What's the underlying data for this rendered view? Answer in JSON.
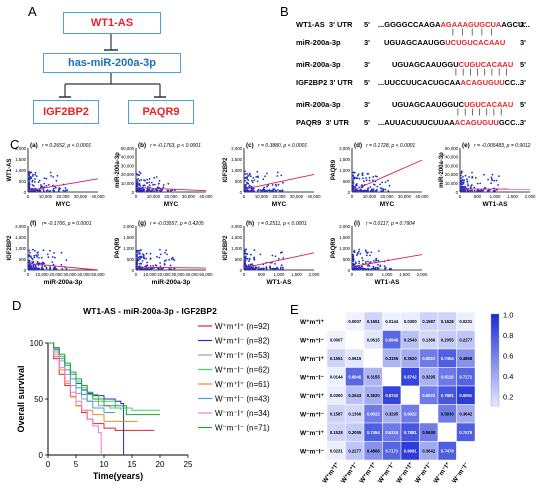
{
  "panels": {
    "A": "A",
    "B": "B",
    "C": "C",
    "D": "D",
    "E": "E"
  },
  "panelA": {
    "top": "WT1-AS",
    "mid": "has-miR-200a-3p",
    "left": "IGF2BP2",
    "right": "PAQR9",
    "colors": {
      "border": "#4aa3d8",
      "red": "#e8232b",
      "blue": "#1d6fb8"
    }
  },
  "panelB": {
    "rows": [
      {
        "label": "WT1-AS  3' UTR",
        "p5": "5'",
        "pre": "...GGGGCCAAGA",
        "hl": "AGAAAGUGCUA",
        "post": "AGCU...",
        "p3": "3'"
      },
      {
        "label": "miR-200a-3p",
        "p5": "3'",
        "pre": "UGUAGCAAUGG",
        "hl": "UCUGUCACAAU",
        "post": "",
        "p3": "5'"
      },
      {
        "label": "miR-200a-3p",
        "p5": "3'",
        "pre": "UGUAGCAAUGGU",
        "hl": "CUGUCACAAU",
        "post": "",
        "p3": "5'"
      },
      {
        "label": "IGF2BP2 3' UTR",
        "p5": "5'",
        "pre": "...UUCCUUCACUGCAA",
        "hl": "ACAGUGUU",
        "post": "CC...",
        "p3": "3'"
      },
      {
        "label": "miR-200a-3p",
        "p5": "3'",
        "pre": "UGUAGCAAUGGUC",
        "hl": "UGUCACAAU",
        "post": "",
        "p3": "5'"
      },
      {
        "label": "PAQR9  3' UTR",
        "p5": "5'",
        "pre": "...AUUACUUUCUUAA",
        "hl": "ACAGUGUU",
        "post": "GCC...",
        "p3": "3'"
      }
    ],
    "bars1": "|   |   |   |   |",
    "bars2": "|  |  |  |  |  |  |  |",
    "bars3": "|  |  |  |  |  |  |"
  },
  "scatter": [
    {
      "tag": "(a)",
      "stat": "r = 0.2652, p < 0.0001",
      "ylabel": "WT1-AS",
      "xlabel": "MYC",
      "yticks": [
        "0",
        "500",
        "1,000",
        "1,500",
        "2,000"
      ],
      "xticks": [
        "0",
        "10,000",
        "20,000",
        "30,000",
        "40,000"
      ],
      "xmax": 40000,
      "ymax": 2000,
      "line": [
        [
          0,
          60
        ],
        [
          40000,
          600
        ]
      ]
    },
    {
      "tag": "(b)",
      "stat": "r = -0.1763, p < 0.0001",
      "ylabel": "miR-200a-3p",
      "xlabel": "MYC",
      "yticks": [
        "0",
        "10,000",
        "20,000",
        "30,000",
        "40,000",
        "50,000"
      ],
      "xticks": [
        "0",
        "10,000",
        "20,000",
        "30,000",
        "40,000"
      ],
      "xmax": 40000,
      "ymax": 50000,
      "line": [
        [
          0,
          5000
        ],
        [
          40000,
          1500
        ]
      ]
    },
    {
      "tag": "(c)",
      "stat": "r = 0.3880, p < 0.0001",
      "ylabel": "IGF2BP2",
      "xlabel": "MYC",
      "yticks": [
        "0",
        "500",
        "1,000",
        "1,500",
        "2,000"
      ],
      "xticks": [
        "0",
        "10,000",
        "20,000",
        "30,000",
        "40,000"
      ],
      "xmax": 40000,
      "ymax": 2000,
      "line": [
        [
          0,
          120
        ],
        [
          40000,
          800
        ]
      ]
    },
    {
      "tag": "(d)",
      "stat": "r = 0.1728, p < 0.0001",
      "ylabel": "PAQR9",
      "xlabel": "MYC",
      "yticks": [
        "0",
        "500",
        "1,000",
        "1,500",
        "2,000"
      ],
      "xticks": [
        "0",
        "10,000",
        "20,000",
        "30,000",
        "40,000"
      ],
      "xmax": 40000,
      "ymax": 2000,
      "line": [
        [
          0,
          50
        ],
        [
          40000,
          1450
        ]
      ]
    },
    {
      "tag": "(e)",
      "stat": "r = -0.005483, p = 0.9012",
      "ylabel": "miR-200a-3p",
      "xlabel": "WT1-AS",
      "yticks": [
        "0",
        "10,000",
        "20,000",
        "30,000",
        "40,000",
        "50,000"
      ],
      "xticks": [
        "0",
        "500",
        "1,000",
        "1,500",
        "2,000"
      ],
      "xmax": 2000,
      "ymax": 50000,
      "line": [
        [
          0,
          3500
        ],
        [
          2000,
          3300
        ]
      ]
    },
    {
      "tag": "(f)",
      "stat": "r= -0.1706, p = 0.0001",
      "ylabel": "IGF2BP2",
      "xlabel": "miR-200a-3p",
      "yticks": [
        "0",
        "500",
        "1,000",
        "1,500",
        "2,000"
      ],
      "xticks": [
        "0",
        "10,000",
        "20,000",
        "30,000",
        "40,000",
        "50,000"
      ],
      "xmax": 50000,
      "ymax": 2000,
      "line": [
        [
          0,
          300
        ],
        [
          50000,
          -50
        ]
      ]
    },
    {
      "tag": "(g)",
      "stat": "r = -0.03557, p = 0.4205",
      "ylabel": "PAQR9",
      "xlabel": "miR-200a-3p",
      "yticks": [
        "0",
        "500",
        "1,000",
        "1,500",
        "2,000"
      ],
      "xticks": [
        "0",
        "10,000",
        "20,000",
        "30,000",
        "40,000",
        "50,000"
      ],
      "xmax": 50000,
      "ymax": 2000,
      "line": [
        [
          0,
          130
        ],
        [
          50000,
          90
        ]
      ]
    },
    {
      "tag": "(h)",
      "stat": "r = 0.2511, p < 0.0001",
      "ylabel": "IGF2BP2",
      "xlabel": "WT1-AS",
      "yticks": [
        "0",
        "500",
        "1,000",
        "1,500",
        "2,000"
      ],
      "xticks": [
        "0",
        "500",
        "1,000",
        "1,500",
        "2,000"
      ],
      "xmax": 2000,
      "ymax": 2000,
      "line": [
        [
          0,
          100
        ],
        [
          2000,
          780
        ]
      ]
    },
    {
      "tag": "(i)",
      "stat": "r = 0.0117, p = 0.7904",
      "ylabel": "PAQR9",
      "xlabel": "WT1-AS",
      "yticks": [
        "0",
        "500",
        "1,000",
        "1,500",
        "2,000"
      ],
      "xticks": [
        "0",
        "500",
        "1,000",
        "1,500",
        "2,000"
      ],
      "xmax": 2000,
      "ymax": 2000,
      "line": [
        [
          0,
          150
        ],
        [
          2000,
          700
        ]
      ]
    }
  ],
  "chart_data": [
    {
      "type": "line",
      "title": "WT1-AS - miR-200a-3p - IGF2BP2",
      "xlabel": "Time(years)",
      "ylabel": "Overall survival",
      "xlim": [
        0,
        25
      ],
      "ylim": [
        0,
        100
      ],
      "xticks": [
        "0",
        "5",
        "10",
        "15",
        "20",
        "25"
      ],
      "yticks": [
        "0",
        "50",
        "100"
      ],
      "series": [
        {
          "name": "W⁺m⁺I⁺ (n=92)",
          "color": "#e8232b",
          "points": [
            [
              0,
              100
            ],
            [
              1,
              86
            ],
            [
              2,
              72
            ],
            [
              3,
              62
            ],
            [
              4,
              52
            ],
            [
              5,
              44
            ],
            [
              6,
              38
            ],
            [
              7,
              32
            ],
            [
              8,
              28
            ],
            [
              10,
              24
            ],
            [
              12,
              22
            ],
            [
              19,
              22
            ]
          ]
        },
        {
          "name": "W⁺m⁺I⁻ (n=82)",
          "color": "#1f2fc7",
          "points": [
            [
              0,
              100
            ],
            [
              1,
              94
            ],
            [
              2,
              88
            ],
            [
              3,
              80
            ],
            [
              4,
              72
            ],
            [
              5,
              64
            ],
            [
              6,
              58
            ],
            [
              7,
              55
            ],
            [
              8,
              53
            ],
            [
              10,
              50
            ],
            [
              12,
              48
            ],
            [
              13,
              46
            ],
            [
              13.5,
              0
            ]
          ]
        },
        {
          "name": "W⁺m⁻I⁺ (n=53)",
          "color": "#9aa0a6",
          "points": [
            [
              0,
              100
            ],
            [
              1,
              92
            ],
            [
              2,
              84
            ],
            [
              3,
              72
            ],
            [
              4,
              62
            ],
            [
              5,
              55
            ],
            [
              6,
              50
            ],
            [
              7,
              48
            ],
            [
              9,
              44
            ],
            [
              11,
              42
            ],
            [
              13,
              40
            ]
          ]
        },
        {
          "name": "W⁺m⁻I⁻ (n=62)",
          "color": "#3ed15b",
          "points": [
            [
              0,
              100
            ],
            [
              1,
              95
            ],
            [
              2,
              88
            ],
            [
              3,
              80
            ],
            [
              4,
              72
            ],
            [
              5,
              66
            ],
            [
              6,
              60
            ],
            [
              7,
              54
            ],
            [
              9,
              48
            ],
            [
              12,
              42
            ],
            [
              15,
              40
            ],
            [
              20,
              40
            ]
          ]
        },
        {
          "name": "W⁻m⁺I⁺ (n=61)",
          "color": "#f08a24",
          "points": [
            [
              0,
              100
            ],
            [
              1,
              88
            ],
            [
              2,
              76
            ],
            [
              3,
              64
            ],
            [
              4,
              52
            ],
            [
              5,
              44
            ],
            [
              6,
              40
            ],
            [
              8,
              36
            ],
            [
              10,
              30
            ],
            [
              16,
              30
            ]
          ]
        },
        {
          "name": "W⁻m⁺I⁻ (n=43)",
          "color": "#3aa0e0",
          "points": [
            [
              0,
              100
            ],
            [
              1,
              94
            ],
            [
              2,
              86
            ],
            [
              3,
              76
            ],
            [
              4,
              68
            ],
            [
              5,
              60
            ],
            [
              6,
              54
            ],
            [
              7,
              48
            ],
            [
              8,
              42
            ],
            [
              10,
              38
            ],
            [
              12,
              38
            ]
          ]
        },
        {
          "name": "W⁻m⁻I⁺ (n=34)",
          "color": "#f27bd1",
          "points": [
            [
              0,
              100
            ],
            [
              1,
              90
            ],
            [
              2,
              78
            ],
            [
              3,
              66
            ],
            [
              4,
              56
            ],
            [
              5,
              48
            ],
            [
              6,
              40
            ],
            [
              7,
              32
            ],
            [
              8,
              26
            ],
            [
              9,
              20
            ],
            [
              9.5,
              0
            ]
          ]
        },
        {
          "name": "W⁻m⁻I⁻ (n=71)",
          "color": "#2a9d3a",
          "points": [
            [
              0,
              100
            ],
            [
              1,
              96
            ],
            [
              2,
              90
            ],
            [
              3,
              82
            ],
            [
              4,
              74
            ],
            [
              5,
              68
            ],
            [
              6,
              62
            ],
            [
              7,
              56
            ],
            [
              8,
              50
            ],
            [
              10,
              44
            ],
            [
              14,
              36
            ],
            [
              20,
              36
            ]
          ]
        }
      ]
    },
    {
      "type": "heatmap",
      "labels": [
        "W⁺m⁺I⁺",
        "W⁺m⁺I⁻",
        "W⁺m⁻I⁺",
        "W⁺m⁻I⁻",
        "W⁻m⁺I⁺",
        "W⁻m⁺I⁻",
        "W⁻m⁻I⁺",
        "W⁻m⁻I⁻"
      ],
      "colorbar": [
        "1.0",
        "0.8",
        "0.6",
        "0.4",
        "0.2"
      ],
      "matrix": [
        [
          null,
          0.0007,
          0.1551,
          0.0144,
          0.03,
          0.1587,
          0.1528,
          0.0231
        ],
        [
          0.0007,
          null,
          0.0615,
          0.6946,
          0.2543,
          0.1366,
          0.2055,
          0.2277
        ],
        [
          0.1551,
          0.0615,
          null,
          0.3155,
          0.352,
          0.6022,
          0.7454,
          0.4868
        ],
        [
          0.0144,
          0.6946,
          0.3155,
          null,
          0.8742,
          0.3295,
          0.6116,
          0.7171
        ],
        [
          0.03,
          0.2543,
          0.352,
          0.8742,
          null,
          0.6022,
          0.7881,
          0.9091
        ],
        [
          0.1587,
          0.1366,
          0.6022,
          0.3295,
          0.6022,
          null,
          0.593,
          0.3642
        ],
        [
          0.1528,
          0.2055,
          0.7454,
          0.6116,
          0.7881,
          0.593,
          null,
          0.7478
        ],
        [
          0.0231,
          0.2277,
          0.4868,
          0.7171,
          0.9091,
          0.3642,
          0.7478,
          null
        ]
      ]
    }
  ]
}
